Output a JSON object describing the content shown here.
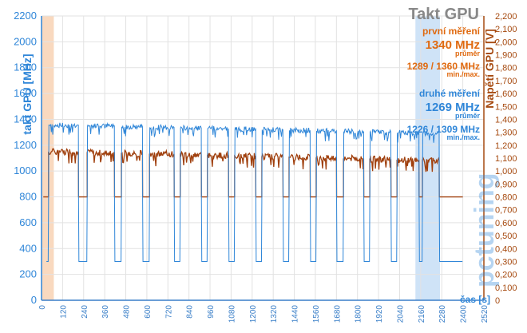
{
  "chart_data": {
    "type": "line",
    "title": "Takt GPU",
    "xlabel": "čas [s]",
    "ylabel": "takt GPU [MHz]",
    "y2label": "Napětí GPU [V]",
    "xlim": [
      0,
      2520
    ],
    "ylim": [
      0,
      2200
    ],
    "y2lim": [
      0,
      2.2
    ],
    "x_ticks": [
      0,
      120,
      240,
      360,
      480,
      600,
      720,
      840,
      960,
      1080,
      1200,
      1320,
      1440,
      1560,
      1680,
      1800,
      1920,
      2040,
      2160,
      2280,
      2400,
      2520
    ],
    "y_ticks": [
      0,
      200,
      400,
      600,
      800,
      1000,
      1200,
      1400,
      1600,
      1800,
      2000,
      2200
    ],
    "y2_ticks": [
      "0",
      "0,100",
      "0,200",
      "0,300",
      "0,400",
      "0,500",
      "0,600",
      "0,700",
      "0,800",
      "0,900",
      "1,000",
      "1,100",
      "1,200",
      "1,300",
      "1,400",
      "1,500",
      "1,600",
      "1,700",
      "1,800",
      "1,900",
      "2,000",
      "2,100",
      "2,200"
    ],
    "grid": true,
    "highlight_regions": [
      {
        "x_start": 0,
        "x_end": 70,
        "color": "#f9d9bf"
      },
      {
        "x_start": 2130,
        "x_end": 2270,
        "color": "#cfe3f7"
      }
    ],
    "annotations": {
      "first": {
        "heading": "první měření",
        "avg": "1340 MHz",
        "avg_label": "průměr",
        "minmax": "1289 / 1360 MHz",
        "minmax_label": "min./max."
      },
      "second": {
        "heading": "druhé měření",
        "avg": "1269 MHz",
        "avg_label": "průměr",
        "minmax": "1226 / 1309 MHz",
        "minmax_label": "min./max."
      }
    },
    "series": [
      {
        "axis": "left",
        "color": "#2f86d8",
        "load_segments": [
          [
            40,
            210
          ],
          [
            260,
            415
          ],
          [
            455,
            575
          ],
          [
            615,
            755
          ],
          [
            790,
            910
          ],
          [
            945,
            1065
          ],
          [
            1100,
            1220
          ],
          [
            1255,
            1375
          ],
          [
            1410,
            1530
          ],
          [
            1565,
            1680
          ],
          [
            1720,
            1835
          ],
          [
            1870,
            1990
          ],
          [
            2025,
            2150
          ],
          [
            2170,
            2265
          ]
        ],
        "load_level_start": 1355,
        "load_level_end": 1290,
        "gap_level": 300,
        "tail_level": 300
      },
      {
        "axis": "right",
        "color": "#a0400e",
        "load_level_start": 1.15,
        "load_level_end": 1.08,
        "gap_level": 0.8
      }
    ],
    "watermark": "pctuning"
  }
}
